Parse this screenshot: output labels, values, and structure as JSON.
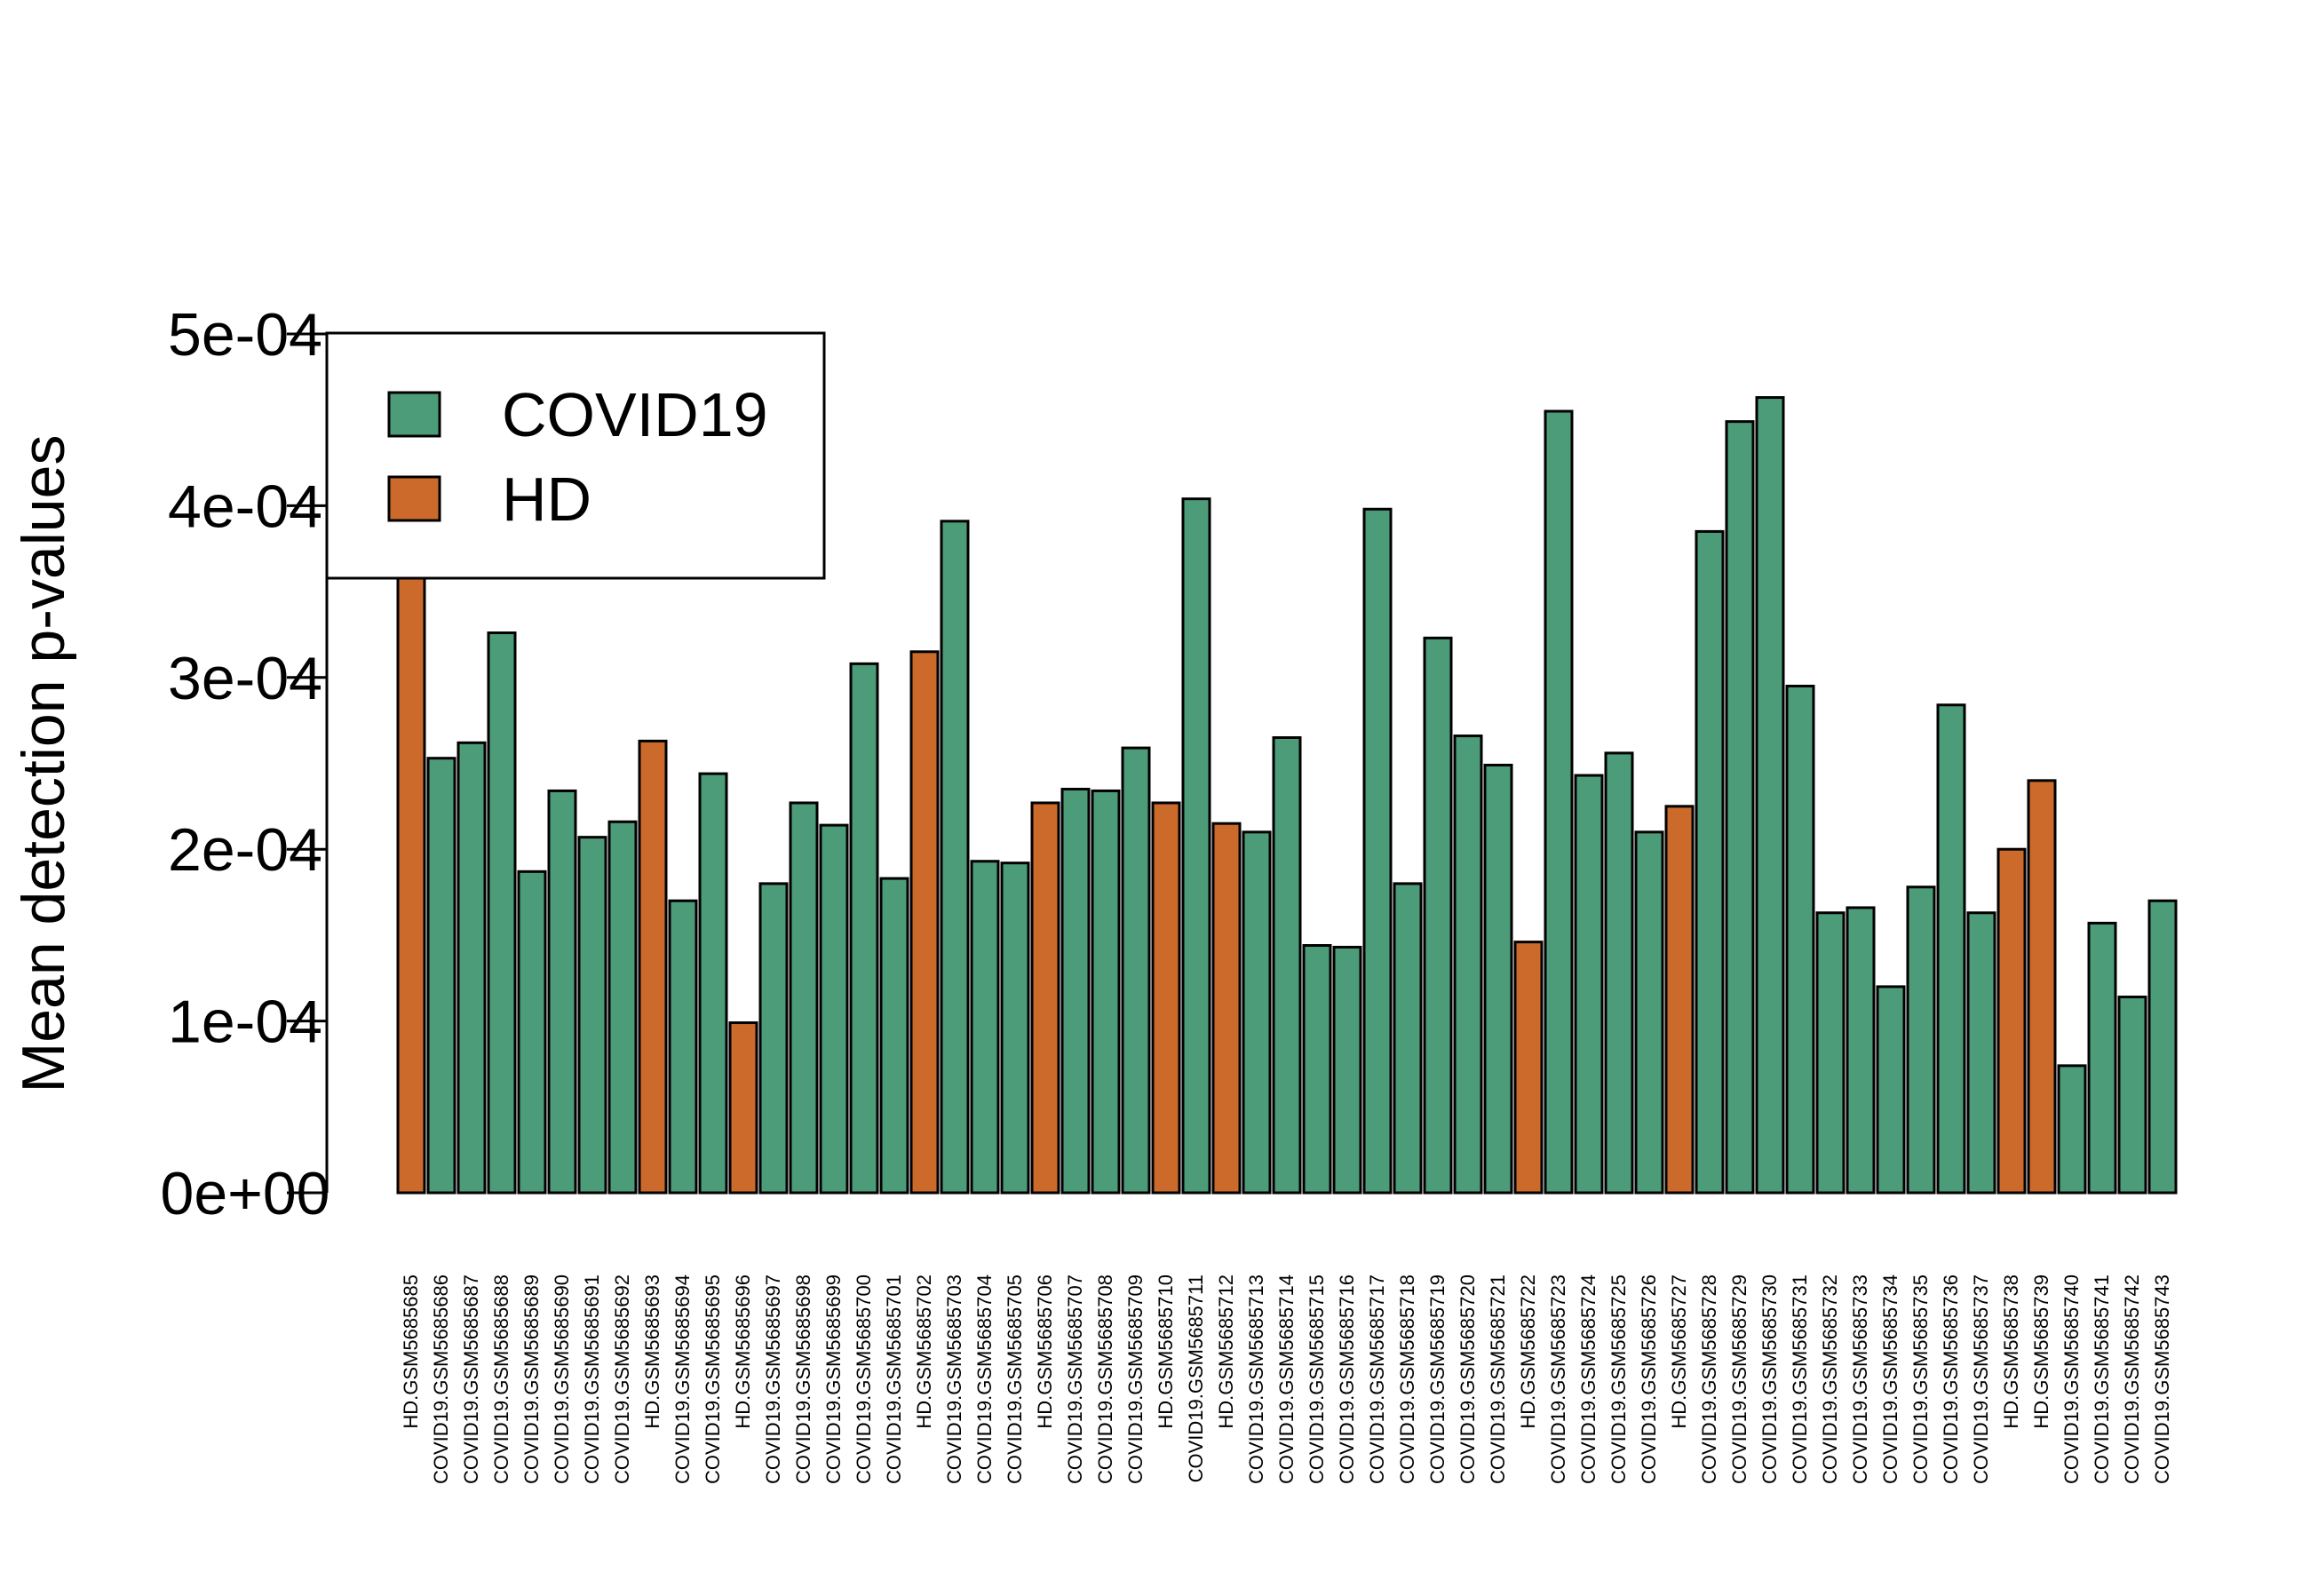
{
  "chart_data": {
    "type": "bar",
    "title": "",
    "xlabel": "",
    "ylabel": "Mean detection p-values",
    "ylim": [
      0,
      0.0005
    ],
    "yticks": [
      0,
      0.0001,
      0.0002,
      0.0003,
      0.0004,
      0.0005
    ],
    "ytick_labels": [
      "0e+00",
      "1e-04",
      "2e-04",
      "3e-04",
      "4e-04",
      "5e-04"
    ],
    "grid": false,
    "legend": {
      "position": "top-left",
      "entries": [
        {
          "label": "COVID19",
          "color": "#4C9C79"
        },
        {
          "label": "HD",
          "color": "#CC6A2C"
        }
      ]
    },
    "colors": {
      "COVID19": "#4C9C79",
      "HD": "#CC6A2C"
    },
    "categories": [
      "HD.GSM5685685",
      "COVID19.GSM5685686",
      "COVID19.GSM5685687",
      "COVID19.GSM5685688",
      "COVID19.GSM5685689",
      "COVID19.GSM5685690",
      "COVID19.GSM5685691",
      "COVID19.GSM5685692",
      "HD.GSM5685693",
      "COVID19.GSM5685694",
      "COVID19.GSM5685695",
      "HD.GSM5685696",
      "COVID19.GSM5685697",
      "COVID19.GSM5685698",
      "COVID19.GSM5685699",
      "COVID19.GSM5685700",
      "COVID19.GSM5685701",
      "HD.GSM5685702",
      "COVID19.GSM5685703",
      "COVID19.GSM5685704",
      "COVID19.GSM5685705",
      "HD.GSM5685706",
      "COVID19.GSM5685707",
      "COVID19.GSM5685708",
      "COVID19.GSM5685709",
      "HD.GSM5685710",
      "COVID19.GSM5685711",
      "HD.GSM5685712",
      "COVID19.GSM5685713",
      "COVID19.GSM5685714",
      "COVID19.GSM5685715",
      "COVID19.GSM5685716",
      "COVID19.GSM5685717",
      "COVID19.GSM5685718",
      "COVID19.GSM5685719",
      "COVID19.GSM5685720",
      "COVID19.GSM5685721",
      "HD.GSM5685722",
      "COVID19.GSM5685723",
      "COVID19.GSM5685724",
      "COVID19.GSM5685725",
      "COVID19.GSM5685726",
      "HD.GSM5685727",
      "COVID19.GSM5685728",
      "COVID19.GSM5685729",
      "COVID19.GSM5685730",
      "COVID19.GSM5685731",
      "COVID19.GSM5685732",
      "COVID19.GSM5685733",
      "COVID19.GSM5685734",
      "COVID19.GSM5685735",
      "COVID19.GSM5685736",
      "COVID19.GSM5685737",
      "HD.GSM5685738",
      "HD.GSM5685739",
      "COVID19.GSM5685740",
      "COVID19.GSM5685741",
      "COVID19.GSM5685742",
      "COVID19.GSM5685743"
    ],
    "groups": [
      "HD",
      "COVID19",
      "COVID19",
      "COVID19",
      "COVID19",
      "COVID19",
      "COVID19",
      "COVID19",
      "HD",
      "COVID19",
      "COVID19",
      "HD",
      "COVID19",
      "COVID19",
      "COVID19",
      "COVID19",
      "COVID19",
      "HD",
      "COVID19",
      "COVID19",
      "COVID19",
      "HD",
      "COVID19",
      "COVID19",
      "COVID19",
      "HD",
      "COVID19",
      "HD",
      "COVID19",
      "COVID19",
      "COVID19",
      "COVID19",
      "COVID19",
      "COVID19",
      "COVID19",
      "COVID19",
      "COVID19",
      "HD",
      "COVID19",
      "COVID19",
      "COVID19",
      "COVID19",
      "HD",
      "COVID19",
      "COVID19",
      "COVID19",
      "COVID19",
      "COVID19",
      "COVID19",
      "COVID19",
      "COVID19",
      "COVID19",
      "COVID19",
      "HD",
      "HD",
      "COVID19",
      "COVID19",
      "COVID19",
      "COVID19"
    ],
    "values": [
      0.000365,
      0.000253,
      0.000262,
      0.000326,
      0.000187,
      0.000234,
      0.000207,
      0.000216,
      0.000263,
      0.00017,
      0.000244,
      9.9e-05,
      0.00018,
      0.000227,
      0.000214,
      0.000308,
      0.000183,
      0.000315,
      0.000391,
      0.000193,
      0.000192,
      0.000227,
      0.000235,
      0.000234,
      0.000259,
      0.000227,
      0.000404,
      0.000215,
      0.00021,
      0.000265,
      0.000144,
      0.000143,
      0.000398,
      0.00018,
      0.000323,
      0.000266,
      0.000249,
      0.000146,
      0.000455,
      0.000243,
      0.000256,
      0.00021,
      0.000225,
      0.000385,
      0.000449,
      0.000463,
      0.000295,
      0.000163,
      0.000166,
      0.00012,
      0.000178,
      0.000284,
      0.000163,
      0.0002,
      0.00024,
      7.4e-05,
      0.000157,
      0.000114,
      0.00017
    ]
  }
}
